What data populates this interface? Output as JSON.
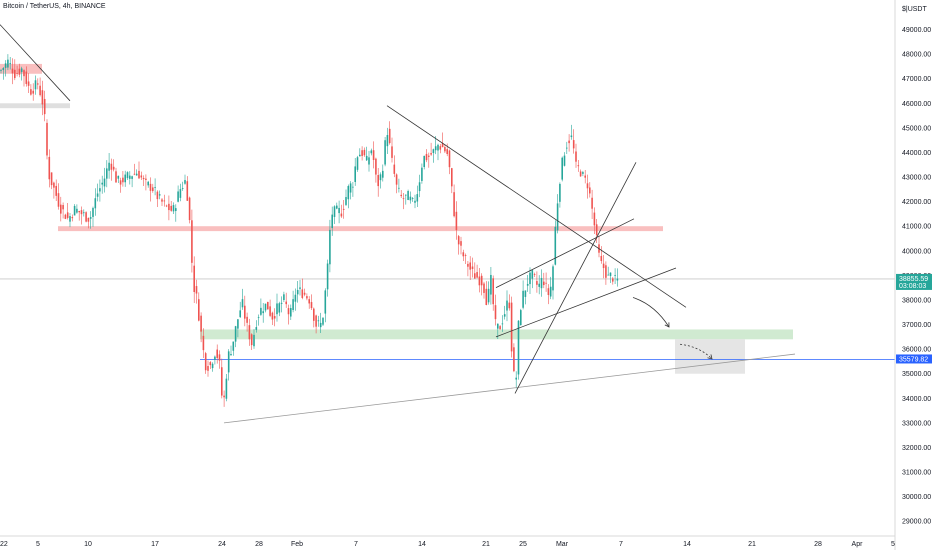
{
  "header": {
    "title": "Bitcoin / TetherUS, 4h, BINANCE"
  },
  "axis": {
    "currency_label": "$|USDT"
  },
  "price_badges": [
    {
      "value": "38855.59",
      "sub": "03:08:03",
      "color": "#26a69a"
    },
    {
      "value": "35579.82",
      "sub": "",
      "color": "#2962ff"
    }
  ],
  "chart_data": {
    "type": "candlestick",
    "title": "Bitcoin / TetherUS, 4h, BINANCE",
    "ylim": [
      28400,
      50200
    ],
    "y_ticks": [
      29000,
      30000,
      31000,
      32000,
      33000,
      34000,
      35000,
      36000,
      37000,
      38000,
      39000,
      40000,
      41000,
      42000,
      43000,
      44000,
      45000,
      46000,
      47000,
      48000,
      49000
    ],
    "x_tick_labels": [
      "22",
      "5",
      "10",
      "17",
      "24",
      "28",
      "Feb",
      "7",
      "14",
      "21",
      "25",
      "Mar",
      "7",
      "14",
      "21",
      "28",
      "Apr",
      "5"
    ],
    "x_ticks_index": [
      0,
      38,
      88,
      155,
      222,
      259,
      297,
      356,
      422,
      486,
      523,
      562,
      621,
      687,
      752,
      818,
      857,
      893
    ],
    "price_path": [
      [
        0,
        47300
      ],
      [
        8,
        47700
      ],
      [
        15,
        47200
      ],
      [
        22,
        47400
      ],
      [
        30,
        46500
      ],
      [
        38,
        46800
      ],
      [
        44,
        45800
      ],
      [
        48,
        43200
      ],
      [
        55,
        42400
      ],
      [
        60,
        41800
      ],
      [
        68,
        41300
      ],
      [
        75,
        41700
      ],
      [
        82,
        41500
      ],
      [
        90,
        41300
      ],
      [
        97,
        42300
      ],
      [
        104,
        42900
      ],
      [
        110,
        43700
      ],
      [
        117,
        42800
      ],
      [
        124,
        42900
      ],
      [
        131,
        43100
      ],
      [
        138,
        43200
      ],
      [
        145,
        42700
      ],
      [
        152,
        42600
      ],
      [
        159,
        42100
      ],
      [
        166,
        41800
      ],
      [
        173,
        41600
      ],
      [
        180,
        42500
      ],
      [
        186,
        42900
      ],
      [
        190,
        41000
      ],
      [
        193,
        38700
      ],
      [
        197,
        38000
      ],
      [
        200,
        37000
      ],
      [
        205,
        35400
      ],
      [
        210,
        35300
      ],
      [
        215,
        35900
      ],
      [
        219,
        35600
      ],
      [
        223,
        33500
      ],
      [
        228,
        35700
      ],
      [
        232,
        36100
      ],
      [
        237,
        37100
      ],
      [
        242,
        37900
      ],
      [
        247,
        36900
      ],
      [
        252,
        36200
      ],
      [
        257,
        37300
      ],
      [
        262,
        37700
      ],
      [
        267,
        37800
      ],
      [
        272,
        37300
      ],
      [
        278,
        37700
      ],
      [
        284,
        38000
      ],
      [
        290,
        37300
      ],
      [
        296,
        38400
      ],
      [
        303,
        38300
      ],
      [
        310,
        38000
      ],
      [
        316,
        37000
      ],
      [
        322,
        37000
      ],
      [
        327,
        39000
      ],
      [
        331,
        41500
      ],
      [
        336,
        41600
      ],
      [
        342,
        41600
      ],
      [
        348,
        42500
      ],
      [
        353,
        42800
      ],
      [
        357,
        43900
      ],
      [
        362,
        44000
      ],
      [
        367,
        43600
      ],
      [
        372,
        44200
      ],
      [
        377,
        42600
      ],
      [
        382,
        43200
      ],
      [
        387,
        45000
      ],
      [
        392,
        43600
      ],
      [
        397,
        42500
      ],
      [
        402,
        42100
      ],
      [
        408,
        42200
      ],
      [
        413,
        41900
      ],
      [
        418,
        42500
      ],
      [
        423,
        43800
      ],
      [
        428,
        43800
      ],
      [
        433,
        44000
      ],
      [
        438,
        44300
      ],
      [
        443,
        44200
      ],
      [
        448,
        43900
      ],
      [
        453,
        42000
      ],
      [
        457,
        40500
      ],
      [
        462,
        39900
      ],
      [
        467,
        39500
      ],
      [
        472,
        39100
      ],
      [
        478,
        38900
      ],
      [
        483,
        38700
      ],
      [
        487,
        37900
      ],
      [
        491,
        38800
      ],
      [
        495,
        37000
      ],
      [
        499,
        36800
      ],
      [
        504,
        37400
      ],
      [
        509,
        38100
      ],
      [
        513,
        35000
      ],
      [
        516,
        34700
      ],
      [
        519,
        37400
      ],
      [
        523,
        38200
      ],
      [
        528,
        38800
      ],
      [
        533,
        39000
      ],
      [
        538,
        38500
      ],
      [
        543,
        38900
      ],
      [
        548,
        38200
      ],
      [
        552,
        38700
      ],
      [
        556,
        41400
      ],
      [
        560,
        43000
      ],
      [
        564,
        44000
      ],
      [
        568,
        44500
      ],
      [
        572,
        44600
      ],
      [
        576,
        43400
      ],
      [
        580,
        43300
      ],
      [
        584,
        42900
      ],
      [
        588,
        42700
      ],
      [
        592,
        41700
      ],
      [
        596,
        40600
      ],
      [
        600,
        39500
      ],
      [
        604,
        39300
      ],
      [
        608,
        38900
      ],
      [
        612,
        39000
      ],
      [
        616,
        38700
      ],
      [
        619,
        38900
      ]
    ],
    "resistance_zones": [
      {
        "y_low": 40800,
        "y_high": 41000,
        "x_start": 58,
        "x_end": 663,
        "color": "#f8b4b4"
      },
      {
        "y_low": 47200,
        "y_high": 47600,
        "x_start": 0,
        "x_end": 42,
        "color": "#f8b4b4"
      }
    ],
    "support_zones": [
      {
        "y_low": 36400,
        "y_high": 36800,
        "x_start": 200,
        "x_end": 793,
        "color": "#c8e6c9"
      }
    ],
    "gray_zones": [
      {
        "y_low": 45800,
        "y_high": 46000,
        "x_start": 0,
        "x_end": 70,
        "color": "#d9d9d9"
      },
      {
        "y_low": 35000,
        "y_high": 36400,
        "x_start": 675,
        "x_end": 745,
        "color": "#e0e0e0"
      }
    ],
    "horizontal_lines": [
      {
        "y": 35580,
        "x_start": 200,
        "x_end": 895,
        "color": "#2962ff"
      },
      {
        "y": 38856,
        "x_start": 0,
        "x_end": 895,
        "color": "#c8c8c8"
      }
    ],
    "trend_lines": [
      {
        "x1": 0,
        "y1": 49200,
        "x2": 70,
        "y2": 46100,
        "color": "#333333"
      },
      {
        "x1": 387,
        "y1": 45900,
        "x2": 686,
        "y2": 37700,
        "color": "#333333"
      },
      {
        "x1": 224,
        "y1": 33000,
        "x2": 795,
        "y2": 35800,
        "color": "#999999"
      },
      {
        "x1": 515,
        "y1": 34200,
        "x2": 636,
        "y2": 43600,
        "color": "#333333"
      },
      {
        "x1": 496,
        "y1": 36500,
        "x2": 676,
        "y2": 39300,
        "color": "#333333"
      },
      {
        "x1": 496,
        "y1": 38500,
        "x2": 634,
        "y2": 41300,
        "color": "#333333"
      }
    ],
    "projection_arrows": [
      {
        "path": [
          [
            633,
            38100
          ],
          [
            655,
            37800
          ],
          [
            669,
            36900
          ]
        ],
        "color": "#333333"
      },
      {
        "path": [
          [
            680,
            36200
          ],
          [
            700,
            36100
          ],
          [
            712,
            35600
          ]
        ],
        "color": "#333333",
        "dashed": true
      }
    ]
  }
}
